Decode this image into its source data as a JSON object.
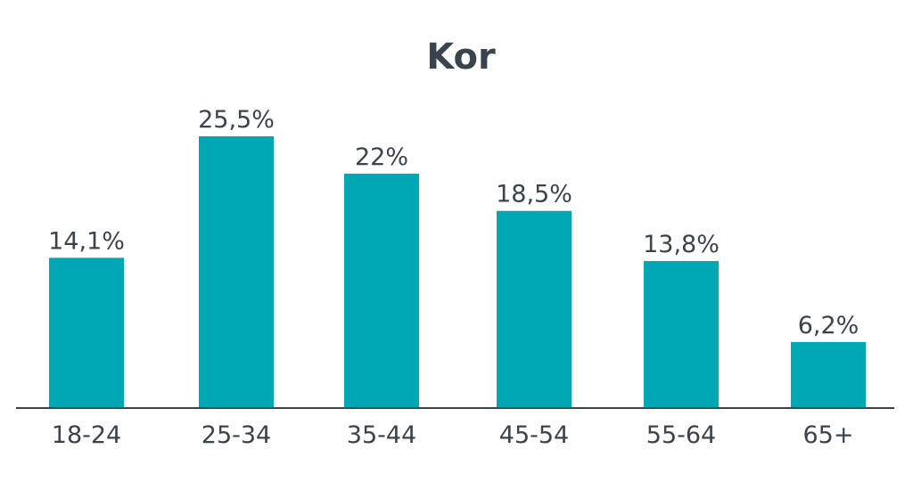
{
  "chart_data": {
    "type": "bar",
    "title": "Kor",
    "categories": [
      "18-24",
      "25-34",
      "35-44",
      "45-54",
      "55-64",
      "65+"
    ],
    "values": [
      14.1,
      25.5,
      22,
      18.5,
      13.8,
      6.2
    ],
    "value_labels": [
      "14,1%",
      "25,5%",
      "22%",
      "18,5%",
      "13,8%",
      "6,2%"
    ],
    "xlabel": "",
    "ylabel": "",
    "ylim": [
      0,
      25.5
    ],
    "grid": false,
    "legend": "none",
    "bar_color": "#00a8b5",
    "axis_color": "#39444d",
    "text_color": "#39444d"
  }
}
